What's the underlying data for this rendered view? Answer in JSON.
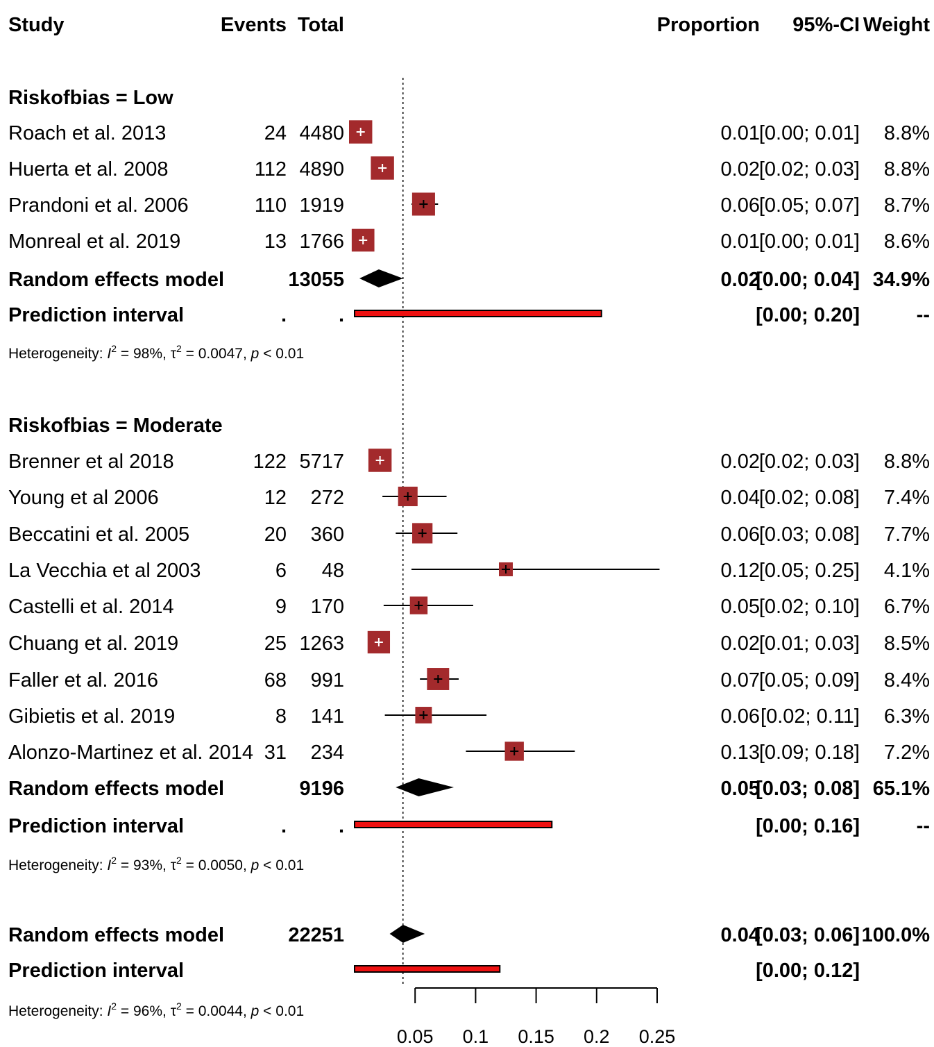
{
  "chart_data": {
    "type": "forest",
    "columns": {
      "study": "Study",
      "events": "Events",
      "total": "Total",
      "proportion": "Proportion",
      "ci": "95%-CI",
      "weight": "Weight"
    },
    "reference_line": 0.04,
    "x_axis": {
      "range": [
        0.05,
        0.25
      ],
      "ticks": [
        0.05,
        0.1,
        0.15,
        0.2,
        0.25
      ],
      "tick_labels": [
        "0.05",
        "0.1",
        "0.15",
        "0.2",
        "0.25"
      ]
    },
    "subgroups": [
      {
        "label": "Riskofbias = Low",
        "studies": [
          {
            "name": "Roach et al. 2013",
            "events": "24",
            "total": "4480",
            "prop_text": "0.01",
            "ci_text": "[0.00; 0.01]",
            "weight": "8.8%",
            "est": 0.005,
            "lo": 0.004,
            "hi": 0.008
          },
          {
            "name": "Huerta et al. 2008",
            "events": "112",
            "total": "4890",
            "prop_text": "0.02",
            "ci_text": "[0.02; 0.03]",
            "weight": "8.8%",
            "est": 0.023,
            "lo": 0.019,
            "hi": 0.028
          },
          {
            "name": "Prandoni et al. 2006",
            "events": "110",
            "total": "1919",
            "prop_text": "0.06",
            "ci_text": "[0.05; 0.07]",
            "weight": "8.7%",
            "est": 0.057,
            "lo": 0.047,
            "hi": 0.069
          },
          {
            "name": "Monreal et al. 2019",
            "events": "13",
            "total": "1766",
            "prop_text": "0.01",
            "ci_text": "[0.00; 0.01]",
            "weight": "8.6%",
            "est": 0.007,
            "lo": 0.004,
            "hi": 0.013
          }
        ],
        "model": {
          "label": "Random effects model",
          "total": "13055",
          "prop_text": "0.02",
          "ci_text": "[0.00; 0.04]",
          "weight": "34.9%",
          "est": 0.02,
          "lo": 0.004,
          "hi": 0.04
        },
        "prediction": {
          "label": "Prediction interval",
          "events": ".",
          "total": ".",
          "ci_text": "[0.00; 0.20]",
          "weight": "--",
          "lo": 0.0,
          "hi": 0.204
        },
        "heterogeneity": {
          "prefix": "Heterogeneity: ",
          "i2_sym": "I",
          "sup": "2",
          "i2_val": " = 98%, ",
          "tau_sym": "τ",
          "tau_val": " = 0.0047, ",
          "p_sym": "p",
          "p_val": " < 0.01"
        }
      },
      {
        "label": "Riskofbias = Moderate",
        "studies": [
          {
            "name": "Brenner et al 2018",
            "events": "122",
            "total": "5717",
            "prop_text": "0.02",
            "ci_text": "[0.02; 0.03]",
            "weight": "8.8%",
            "est": 0.021,
            "lo": 0.018,
            "hi": 0.025
          },
          {
            "name": "Young et al 2006",
            "events": "12",
            "total": "272",
            "prop_text": "0.04",
            "ci_text": "[0.02; 0.08]",
            "weight": "7.4%",
            "est": 0.044,
            "lo": 0.023,
            "hi": 0.076
          },
          {
            "name": "Beccatini et al. 2005",
            "events": "20",
            "total": "360",
            "prop_text": "0.06",
            "ci_text": "[0.03; 0.08]",
            "weight": "7.7%",
            "est": 0.056,
            "lo": 0.034,
            "hi": 0.085
          },
          {
            "name": "La Vecchia et al 2003",
            "events": "6",
            "total": "48",
            "prop_text": "0.12",
            "ci_text": "[0.05; 0.25]",
            "weight": "4.1%",
            "est": 0.125,
            "lo": 0.047,
            "hi": 0.252
          },
          {
            "name": "Castelli et al. 2014",
            "events": "9",
            "total": "170",
            "prop_text": "0.05",
            "ci_text": "[0.02; 0.10]",
            "weight": "6.7%",
            "est": 0.053,
            "lo": 0.024,
            "hi": 0.098
          },
          {
            "name": "Chuang et al. 2019",
            "events": "25",
            "total": "1263",
            "prop_text": "0.02",
            "ci_text": "[0.01; 0.03]",
            "weight": "8.5%",
            "est": 0.02,
            "lo": 0.013,
            "hi": 0.029
          },
          {
            "name": "Faller et al. 2016",
            "events": "68",
            "total": "991",
            "prop_text": "0.07",
            "ci_text": "[0.05; 0.09]",
            "weight": "8.4%",
            "est": 0.069,
            "lo": 0.054,
            "hi": 0.086
          },
          {
            "name": "Gibietis et al. 2019",
            "events": "8",
            "total": "141",
            "prop_text": "0.06",
            "ci_text": "[0.02; 0.11]",
            "weight": "6.3%",
            "est": 0.057,
            "lo": 0.025,
            "hi": 0.109
          },
          {
            "name": "Alonzo-Martinez et al. 2014",
            "events": "31",
            "total": "234",
            "prop_text": "0.13",
            "ci_text": "[0.09; 0.18]",
            "weight": "7.2%",
            "est": 0.132,
            "lo": 0.092,
            "hi": 0.182
          }
        ],
        "model": {
          "label": "Random effects model",
          "total": "9196",
          "prop_text": "0.05",
          "ci_text": "[0.03; 0.08]",
          "weight": "65.1%",
          "est": 0.053,
          "lo": 0.034,
          "hi": 0.082
        },
        "prediction": {
          "label": "Prediction interval",
          "events": ".",
          "total": ".",
          "ci_text": "[0.00; 0.16]",
          "weight": "--",
          "lo": 0.0,
          "hi": 0.163
        },
        "heterogeneity": {
          "prefix": "Heterogeneity: ",
          "i2_sym": "I",
          "sup": "2",
          "i2_val": " = 93%, ",
          "tau_sym": "τ",
          "tau_val": " = 0.0050, ",
          "p_sym": "p",
          "p_val": " < 0.01"
        }
      }
    ],
    "overall": {
      "model": {
        "label": "Random effects model",
        "total": "22251",
        "prop_text": "0.04",
        "ci_text": "[0.03; 0.06]",
        "weight": "100.0%",
        "est": 0.04,
        "lo": 0.029,
        "hi": 0.058
      },
      "prediction": {
        "label": "Prediction interval",
        "ci_text": "[0.00; 0.12]",
        "lo": 0.0,
        "hi": 0.12
      },
      "heterogeneity": {
        "prefix": "Heterogeneity: ",
        "i2_sym": "I",
        "sup": "2",
        "i2_val": " = 96%, ",
        "tau_sym": "τ",
        "tau_val": " = 0.0044, ",
        "p_sym": "p",
        "p_val": " < 0.01"
      }
    },
    "colors": {
      "study_box": "#a32a2c",
      "prediction_bar": "#ee1111",
      "diamond": "#000000",
      "ci_line": "#000000"
    }
  }
}
